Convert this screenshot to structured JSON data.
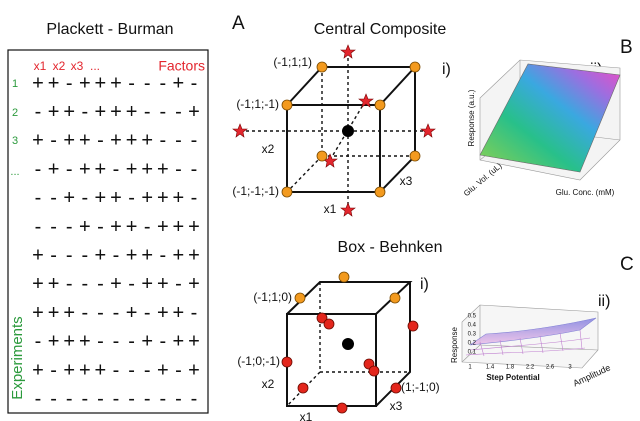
{
  "plackett_burman": {
    "title": "Plackett - Burman",
    "factor_headers": [
      "x1",
      "x2",
      "x3",
      "..."
    ],
    "factors_label": "Factors",
    "row_labels": [
      "1",
      "2",
      "3",
      "..."
    ],
    "experiments_label": "Experiments",
    "rows": [
      [
        "+",
        "+",
        "-",
        "+",
        "+",
        "+",
        "-",
        "-",
        "-",
        "+",
        "-"
      ],
      [
        "-",
        "+",
        "+",
        "-",
        "+",
        "+",
        "+",
        "-",
        "-",
        "-",
        "+"
      ],
      [
        "+",
        "-",
        "+",
        "+",
        "-",
        "+",
        "+",
        "+",
        "-",
        "-",
        "-"
      ],
      [
        "-",
        "+",
        "-",
        "+",
        "+",
        "-",
        "+",
        "+",
        "+",
        "-",
        "-"
      ],
      [
        "-",
        "-",
        "+",
        "-",
        "+",
        "+",
        "-",
        "+",
        "+",
        "+",
        "-"
      ],
      [
        "-",
        "-",
        "-",
        "+",
        "-",
        "+",
        "+",
        "-",
        "+",
        "+",
        "+"
      ],
      [
        "+",
        "-",
        "-",
        "-",
        "+",
        "-",
        "+",
        "+",
        "-",
        "+",
        "+"
      ],
      [
        "+",
        "+",
        "-",
        "-",
        "-",
        "+",
        "-",
        "+",
        "+",
        "-",
        "+"
      ],
      [
        "+",
        "+",
        "+",
        "-",
        "-",
        "-",
        "+",
        "-",
        "+",
        "+",
        "-"
      ],
      [
        "-",
        "+",
        "+",
        "+",
        "-",
        "-",
        "-",
        "+",
        "-",
        "+",
        "+"
      ],
      [
        "+",
        "-",
        "+",
        "+",
        "+",
        "-",
        "-",
        "-",
        "+",
        "-",
        "+"
      ],
      [
        "-",
        "-",
        "-",
        "-",
        "-",
        "-",
        "-",
        "-",
        "-",
        "-",
        "-"
      ]
    ]
  },
  "panels": {
    "a": "A",
    "b": "B",
    "c": "C"
  },
  "central_composite": {
    "title": "Central Composite",
    "vertex_labels": [
      "(-1;1;1)",
      "(-1;1;-1)",
      "(-1;-1;-1)"
    ],
    "axes": [
      "x1",
      "x2",
      "x3"
    ],
    "sub_i": "i)",
    "sub_ii": "ii)",
    "plot": {
      "z_label": "Response (a.u.)",
      "x_label": "Glu. Vol. (uL)",
      "y_label": "Glu. Conc. (mM)"
    }
  },
  "box_behnken": {
    "title": "Box - Behnken",
    "vertex_labels": [
      "(-1;1;0)",
      "(-1;0;-1)",
      "(1;-1;0)"
    ],
    "axes": [
      "x1",
      "x2",
      "x3"
    ],
    "sub_i": "i)",
    "sub_ii": "ii)",
    "plot": {
      "z_label": "Response",
      "x_label": "Step Potential",
      "y_label": "Amplitude",
      "zticks": [
        "0.5",
        "0.4",
        "0.3",
        "0.2",
        "0.1"
      ],
      "xticks": [
        "1",
        "1.4",
        "1.8",
        "2.2",
        "2.6",
        "3"
      ]
    }
  }
}
